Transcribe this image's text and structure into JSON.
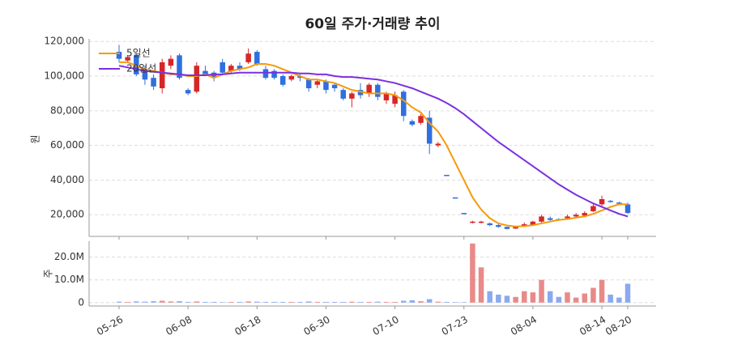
{
  "chart_data": {
    "type": "candlestick",
    "title": "60일 주가·거래량 추이",
    "ylabel": "원",
    "categories": [
      "05-26",
      null,
      null,
      null,
      null,
      null,
      null,
      null,
      "06-08",
      null,
      null,
      null,
      null,
      null,
      null,
      null,
      "06-18",
      null,
      null,
      null,
      null,
      null,
      null,
      null,
      "06-30",
      null,
      null,
      null,
      null,
      null,
      null,
      null,
      "07-10",
      null,
      null,
      null,
      null,
      null,
      null,
      null,
      "07-23",
      null,
      null,
      null,
      null,
      null,
      null,
      null,
      "08-04",
      null,
      null,
      null,
      null,
      null,
      null,
      null,
      "08-14",
      null,
      null,
      "08-20"
    ],
    "open": [
      114000,
      109000,
      112000,
      104000,
      99000,
      93000,
      106000,
      112000,
      92000,
      91000,
      103000,
      102000,
      108000,
      103000,
      106000,
      108000,
      114000,
      104000,
      103000,
      100000,
      98000,
      100000,
      98000,
      95000,
      97000,
      95000,
      92000,
      87000,
      92000,
      90000,
      95000,
      86000,
      84000,
      91000,
      74000,
      73000,
      76000,
      60000,
      43000,
      30000,
      21000,
      15500,
      15500,
      15000,
      14000,
      13000,
      12000,
      13500,
      14000,
      16000,
      18000,
      17500,
      18000,
      19000,
      19500,
      22000,
      26000,
      28000,
      27000,
      26000
    ],
    "high": [
      118000,
      112000,
      113000,
      106000,
      101000,
      110000,
      112000,
      113000,
      93000,
      108000,
      106000,
      103000,
      110000,
      107000,
      108000,
      116000,
      115000,
      106000,
      104000,
      101000,
      101000,
      101000,
      99000,
      98000,
      98000,
      96000,
      93000,
      91000,
      96000,
      96000,
      96000,
      91000,
      91000,
      92000,
      75000,
      78000,
      80000,
      62000,
      43000,
      30000,
      21000,
      16500,
      16500,
      15500,
      14500,
      13000,
      13500,
      15500,
      16500,
      20000,
      19000,
      18000,
      20000,
      21000,
      22000,
      26000,
      31000,
      28500,
      27500,
      27000
    ],
    "low": [
      108000,
      108000,
      100000,
      95000,
      92000,
      90000,
      104000,
      98000,
      89000,
      90000,
      100000,
      97000,
      101000,
      102000,
      103000,
      107000,
      106000,
      98000,
      98000,
      94000,
      97000,
      97000,
      91000,
      93000,
      90000,
      91000,
      86000,
      82000,
      87000,
      88000,
      86000,
      84000,
      82000,
      74000,
      71000,
      72000,
      55000,
      59000,
      42500,
      29500,
      20500,
      15000,
      15000,
      13500,
      12500,
      11500,
      11800,
      13000,
      13500,
      15500,
      16500,
      16500,
      17500,
      18500,
      19000,
      21500,
      25000,
      27000,
      26000,
      20500
    ],
    "close": [
      110000,
      111000,
      101000,
      98000,
      94000,
      108000,
      110000,
      99000,
      90000,
      106000,
      101000,
      99000,
      102000,
      106000,
      104000,
      113000,
      107000,
      99000,
      99000,
      95000,
      100000,
      99000,
      93000,
      97000,
      92000,
      93000,
      87000,
      90000,
      89000,
      95000,
      88000,
      90000,
      89000,
      77000,
      72000,
      77000,
      61000,
      61000,
      42500,
      29500,
      20500,
      16000,
      16000,
      14000,
      13000,
      11800,
      13000,
      14500,
      16000,
      19000,
      17000,
      17000,
      19000,
      20000,
      21000,
      25000,
      29000,
      27500,
      26500,
      21000
    ],
    "up_color": "#d62728",
    "down_color": "#2f6fe0",
    "ylim": [
      7500,
      121500
    ],
    "yticks": [
      {
        "value": 20000,
        "label": "20,000"
      },
      {
        "value": 40000,
        "label": "40,000"
      },
      {
        "value": 60000,
        "label": "60,000"
      },
      {
        "value": 80000,
        "label": "80,000"
      },
      {
        "value": 100000,
        "label": "100,000"
      },
      {
        "value": 120000,
        "label": "120,000"
      }
    ],
    "grid": true,
    "legend": "upper left",
    "series": [
      {
        "name": "5일선",
        "color": "#f59a0c",
        "values": [
          108000,
          108000,
          106000,
          104000,
          103000,
          102000,
          101000,
          101000,
          100000,
          100000,
          101000,
          99000,
          101000,
          103000,
          104000,
          105000,
          107000,
          107000,
          106000,
          104000,
          102000,
          100000,
          98000,
          98000,
          97000,
          96000,
          94000,
          92000,
          91000,
          90000,
          90000,
          90000,
          89000,
          86000,
          82000,
          79000,
          73000,
          68000,
          60000,
          50000,
          40000,
          30000,
          23000,
          18000,
          15000,
          13800,
          13200,
          13400,
          14000,
          15000,
          16000,
          17000,
          17500,
          18300,
          19000,
          20500,
          22500,
          24500,
          26000,
          26000
        ]
      },
      {
        "name": "20일선",
        "color": "#7b2fe0",
        "values": [
          106000,
          105000,
          104000,
          103000,
          102500,
          102000,
          101500,
          101000,
          100500,
          100500,
          100500,
          101000,
          101000,
          101500,
          102000,
          102000,
          102000,
          102000,
          102000,
          102000,
          102000,
          101500,
          101500,
          101000,
          101000,
          100000,
          99500,
          99500,
          99000,
          98500,
          98000,
          97000,
          96000,
          94500,
          93000,
          91000,
          89000,
          87000,
          84500,
          81500,
          78000,
          74000,
          70000,
          66000,
          62000,
          58500,
          55000,
          51500,
          48000,
          44500,
          41000,
          37500,
          34500,
          31500,
          29000,
          26500,
          24500,
          22500,
          20500,
          19000
        ]
      }
    ],
    "volume": {
      "ylabel": "주",
      "up_color": "#e88a8a",
      "down_color": "#8aa9ef",
      "values": [
        400000,
        300000,
        500000,
        400000,
        600000,
        800000,
        500000,
        600000,
        300000,
        500000,
        300000,
        300000,
        200000,
        300000,
        300000,
        500000,
        400000,
        300000,
        300000,
        300000,
        300000,
        300000,
        500000,
        300000,
        300000,
        300000,
        300000,
        400000,
        300000,
        300000,
        400000,
        300000,
        300000,
        800000,
        1000000,
        600000,
        1500000,
        400000,
        300000,
        200000,
        200000,
        26000000,
        15500000,
        5000000,
        3500000,
        3000000,
        2500000,
        5000000,
        4500000,
        10000000,
        5000000,
        2500000,
        4500000,
        2200000,
        4000000,
        6500000,
        10000000,
        3500000,
        2200000,
        8300000
      ],
      "ylim": [
        -1500000,
        27000000
      ],
      "yticks": [
        0,
        {
          "value": 10000000,
          "label": "10.0M"
        },
        {
          "value": 20000000,
          "label": "20.0M"
        }
      ]
    }
  }
}
